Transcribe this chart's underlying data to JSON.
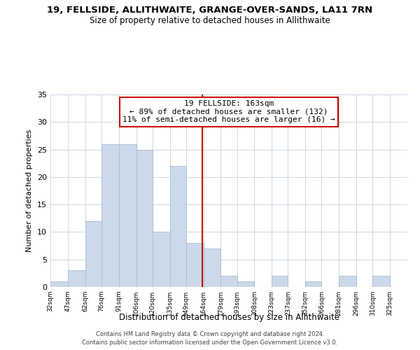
{
  "title": "19, FELLSIDE, ALLITHWAITE, GRANGE-OVER-SANDS, LA11 7RN",
  "subtitle": "Size of property relative to detached houses in Allithwaite",
  "xlabel": "Distribution of detached houses by size in Allithwaite",
  "ylabel": "Number of detached properties",
  "bin_labels": [
    "32sqm",
    "47sqm",
    "62sqm",
    "76sqm",
    "91sqm",
    "106sqm",
    "120sqm",
    "135sqm",
    "149sqm",
    "164sqm",
    "179sqm",
    "193sqm",
    "208sqm",
    "223sqm",
    "237sqm",
    "252sqm",
    "266sqm",
    "281sqm",
    "296sqm",
    "310sqm",
    "325sqm"
  ],
  "bin_edges": [
    32,
    47,
    62,
    76,
    91,
    106,
    120,
    135,
    149,
    164,
    179,
    193,
    208,
    223,
    237,
    252,
    266,
    281,
    296,
    310,
    325
  ],
  "counts": [
    1,
    3,
    12,
    26,
    26,
    25,
    10,
    22,
    8,
    7,
    2,
    1,
    0,
    2,
    0,
    1,
    0,
    2,
    0,
    2,
    0
  ],
  "property_value": 163,
  "bar_color": "#ccd9e8",
  "bar_edgecolor": "#a8bed4",
  "vline_color": "#cc0000",
  "vline_x": 163,
  "annotation_title": "19 FELLSIDE: 163sqm",
  "annotation_line1": "← 89% of detached houses are smaller (132)",
  "annotation_line2": "11% of semi-detached houses are larger (16) →",
  "annotation_box_edgecolor": "#cc0000",
  "ylim": [
    0,
    35
  ],
  "yticks": [
    0,
    5,
    10,
    15,
    20,
    25,
    30,
    35
  ],
  "footer_line1": "Contains HM Land Registry data © Crown copyright and database right 2024.",
  "footer_line2": "Contains public sector information licensed under the Open Government Licence v3.0.",
  "background_color": "#ffffff",
  "grid_color": "#ccd8e8"
}
